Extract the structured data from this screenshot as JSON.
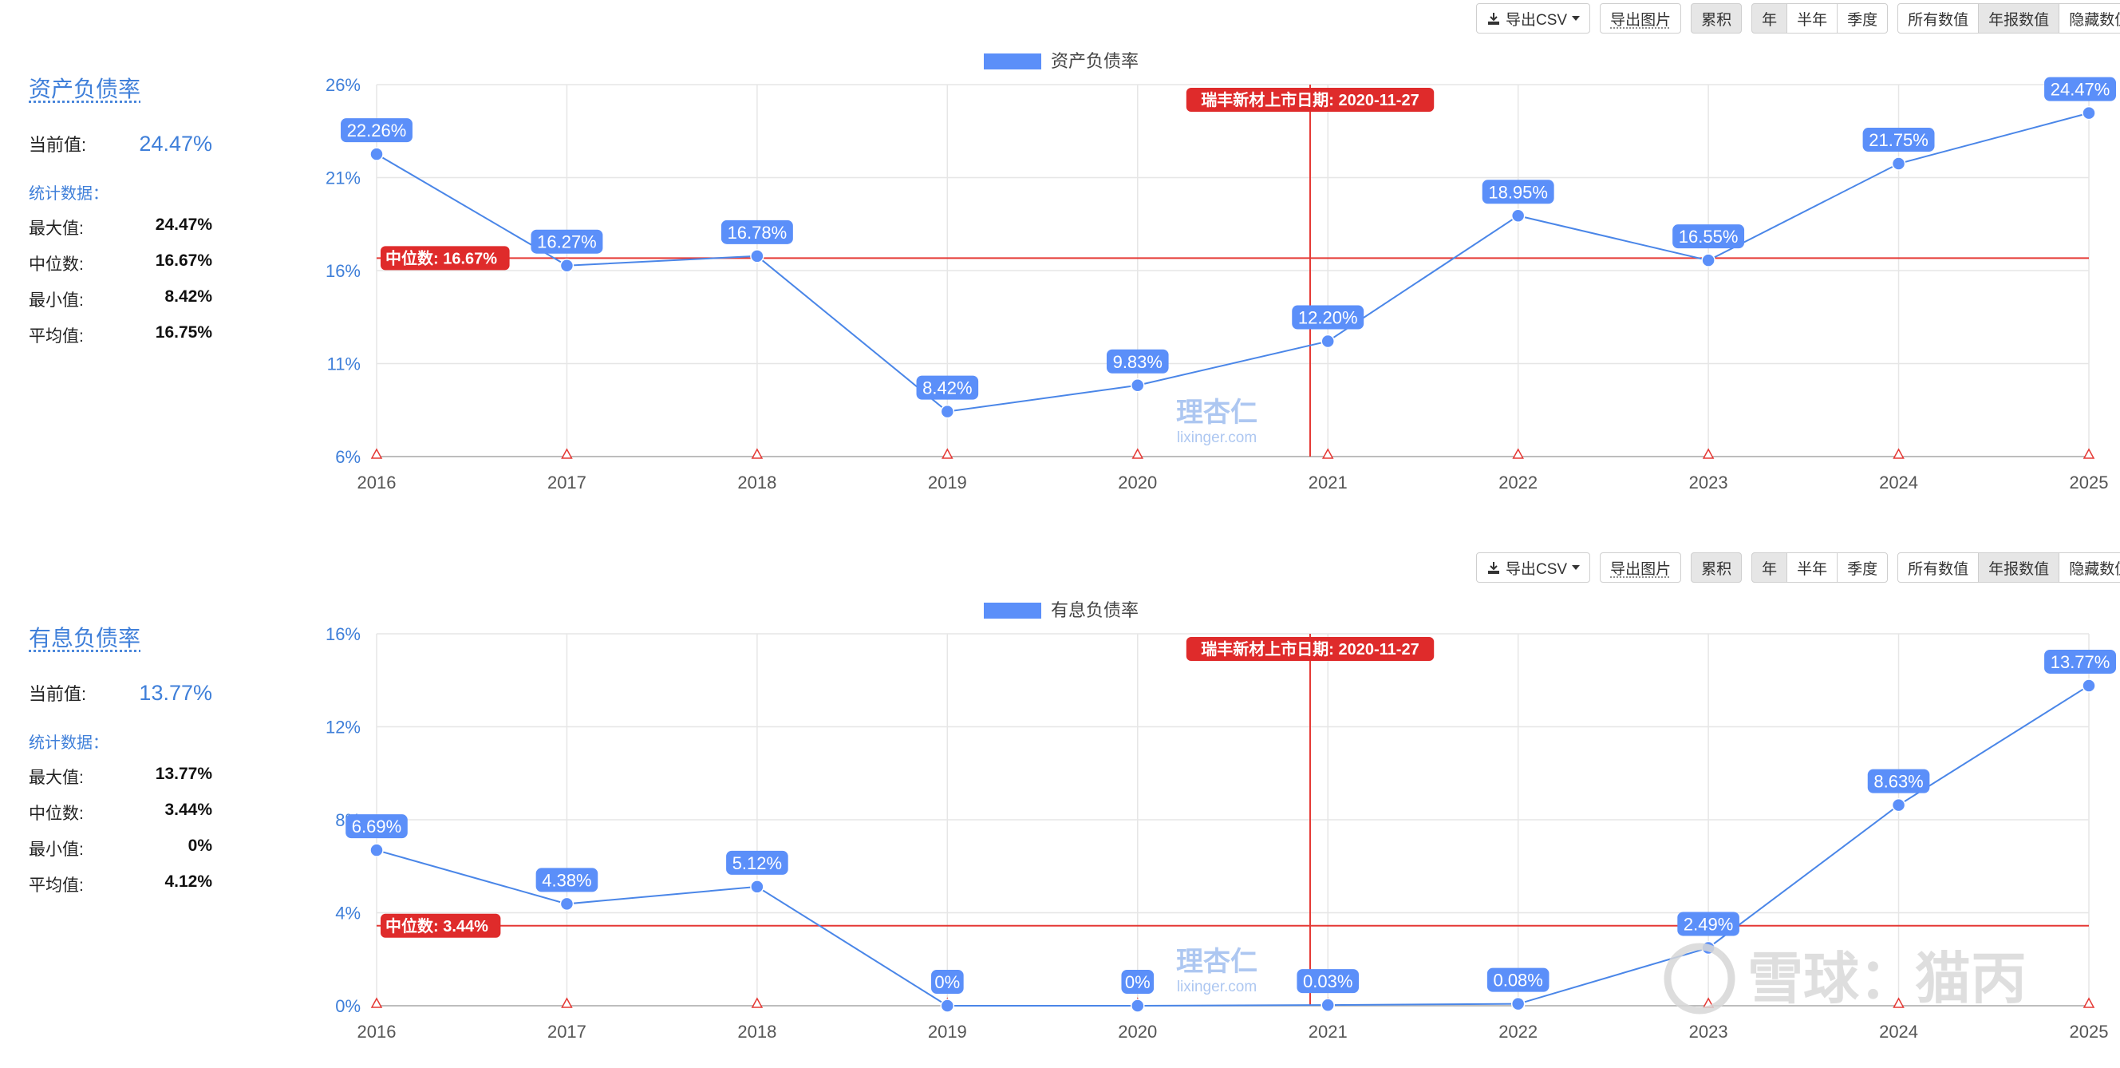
{
  "toolbar": {
    "export_csv": "导出CSV",
    "export_image": "导出图片",
    "cumulative": "累积",
    "period_options": [
      "年",
      "半年",
      "季度"
    ],
    "value_options": [
      "所有数值",
      "年报数值",
      "隐藏数值"
    ]
  },
  "ipo_label": "瑞丰新材上市日期: 2020-11-27",
  "watermark": {
    "logo": "理杏仁",
    "url": "lixinger.com",
    "brand": "雪球：猫丙"
  },
  "colors": {
    "series": "#5b8ff9",
    "line": "#4a86e8",
    "median": "#e53935",
    "accent": "#3f7fd9"
  },
  "panels": [
    {
      "sidebar": {
        "title": "资产负债率",
        "current_label": "当前值:",
        "current_value": "24.47%",
        "stats_title": "统计数据：",
        "stats": [
          {
            "label": "最大值:",
            "value": "24.47%"
          },
          {
            "label": "中位数:",
            "value": "16.67%"
          },
          {
            "label": "最小值:",
            "value": "8.42%"
          },
          {
            "label": "平均值:",
            "value": "16.75%"
          }
        ]
      },
      "chart_data": {
        "type": "line",
        "legend": "资产负债率",
        "x": [
          "2016",
          "2017",
          "2018",
          "2019",
          "2020",
          "2021",
          "2022",
          "2023",
          "2024",
          "2025"
        ],
        "values": [
          22.26,
          16.27,
          16.78,
          8.42,
          9.83,
          12.2,
          18.95,
          16.55,
          21.75,
          24.47
        ],
        "data_labels": [
          "22.26%",
          "16.27%",
          "16.78%",
          "8.42%",
          "9.83%",
          "12.20%",
          "18.95%",
          "16.55%",
          "21.75%",
          "24.47%"
        ],
        "yticks": [
          6,
          11,
          16,
          21,
          26
        ],
        "ytick_labels": [
          "6%",
          "11%",
          "16%",
          "21%",
          "26%"
        ],
        "ylim": [
          6,
          26
        ],
        "median": 16.67,
        "median_label": "中位数: 16.67%",
        "ipo_date": "2020-11-27",
        "grid": true
      }
    },
    {
      "sidebar": {
        "title": "有息负债率",
        "current_label": "当前值:",
        "current_value": "13.77%",
        "stats_title": "统计数据：",
        "stats": [
          {
            "label": "最大值:",
            "value": "13.77%"
          },
          {
            "label": "中位数:",
            "value": "3.44%"
          },
          {
            "label": "最小值:",
            "value": "0%"
          },
          {
            "label": "平均值:",
            "value": "4.12%"
          }
        ]
      },
      "chart_data": {
        "type": "line",
        "legend": "有息负债率",
        "x": [
          "2016",
          "2017",
          "2018",
          "2019",
          "2020",
          "2021",
          "2022",
          "2023",
          "2024",
          "2025"
        ],
        "values": [
          6.69,
          4.38,
          5.12,
          0,
          0,
          0.03,
          0.08,
          2.49,
          8.63,
          13.77
        ],
        "data_labels": [
          "6.69%",
          "4.38%",
          "5.12%",
          "0%",
          "0%",
          "0.03%",
          "0.08%",
          "2.49%",
          "8.63%",
          "13.77%"
        ],
        "yticks": [
          0,
          4,
          8,
          12,
          16
        ],
        "ytick_labels": [
          "0%",
          "4%",
          "8%",
          "12%",
          "16%"
        ],
        "ylim": [
          0,
          16
        ],
        "median": 3.44,
        "median_label": "中位数: 3.44%",
        "ipo_date": "2020-11-27",
        "grid": true
      }
    }
  ]
}
